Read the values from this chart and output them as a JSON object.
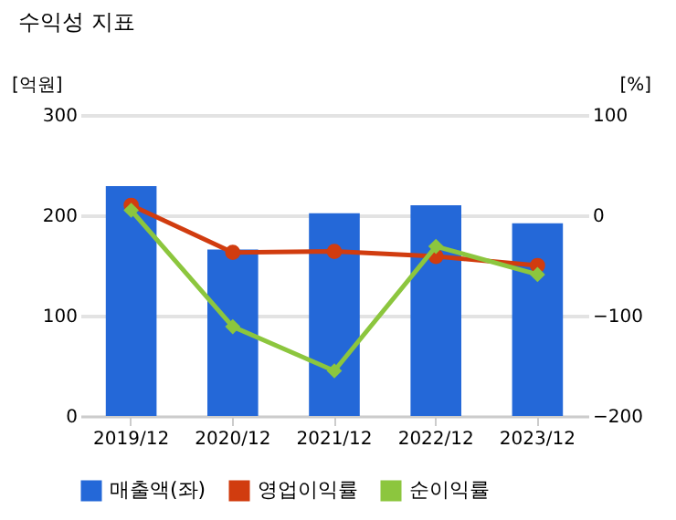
{
  "chart_data": {
    "type": "bar",
    "title": "수익성 지표",
    "ylabel": "[억원]",
    "y2label": "[%]",
    "categories": [
      "2019/12",
      "2020/12",
      "2021/12",
      "2022/12",
      "2023/12"
    ],
    "series": [
      {
        "name": "매출액(좌)",
        "color": "#2468d8",
        "values": [
          229,
          166,
          202,
          210,
          192
        ]
      },
      {
        "name": "영업이익률",
        "type": "line",
        "axis": "y2",
        "marker": "circle",
        "color": "#d13c0f",
        "values": [
          10,
          -37,
          -36,
          -41,
          -50
        ]
      },
      {
        "name": "순이익률",
        "type": "line",
        "axis": "y2",
        "marker": "diamond",
        "color": "#8cc63e",
        "values": [
          5,
          -111,
          -155,
          -31,
          -59
        ]
      }
    ],
    "ylim": [
      0,
      300
    ],
    "yticks": [
      0,
      100,
      200,
      300
    ],
    "y2lim": [
      -200,
      100
    ],
    "y2ticks": [
      -200,
      -100,
      0,
      100
    ],
    "grid": "y",
    "legend": "bottom"
  }
}
